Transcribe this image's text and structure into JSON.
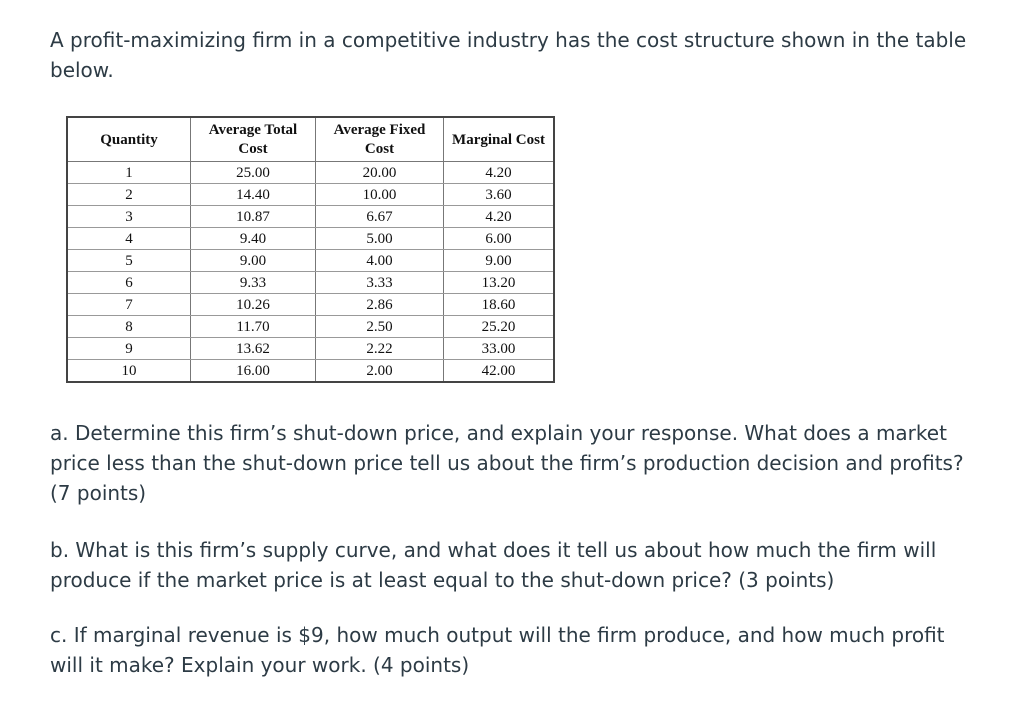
{
  "intro_text": "A profit-maximizing firm in a competitive industry has the cost structure shown in the table below.",
  "table": {
    "headers": [
      "Quantity",
      "Average Total Cost",
      "Average Fixed Cost",
      "Marginal Cost"
    ],
    "rows": [
      [
        "1",
        "25.00",
        "20.00",
        "4.20"
      ],
      [
        "2",
        "14.40",
        "10.00",
        "3.60"
      ],
      [
        "3",
        "10.87",
        "6.67",
        "4.20"
      ],
      [
        "4",
        "9.40",
        "5.00",
        "6.00"
      ],
      [
        "5",
        "9.00",
        "4.00",
        "9.00"
      ],
      [
        "6",
        "9.33",
        "3.33",
        "13.20"
      ],
      [
        "7",
        "10.26",
        "2.86",
        "18.60"
      ],
      [
        "8",
        "11.70",
        "2.50",
        "25.20"
      ],
      [
        "9",
        "13.62",
        "2.22",
        "33.00"
      ],
      [
        "10",
        "16.00",
        "2.00",
        "42.00"
      ]
    ]
  },
  "questions": {
    "a": "a. Determine this firm’s shut-down price, and explain your response. What does a market price less than the shut-down price tell us about the firm’s production decision and profits? (7 points)",
    "b": "b. What is this firm’s supply curve, and what does it tell us about how much the firm will produce if the market price is at least equal to the shut-down price? (3 points)",
    "c": "c. If marginal revenue is $9, how much output will the firm produce, and how much profit will it make? Explain your work. (4 points)"
  }
}
